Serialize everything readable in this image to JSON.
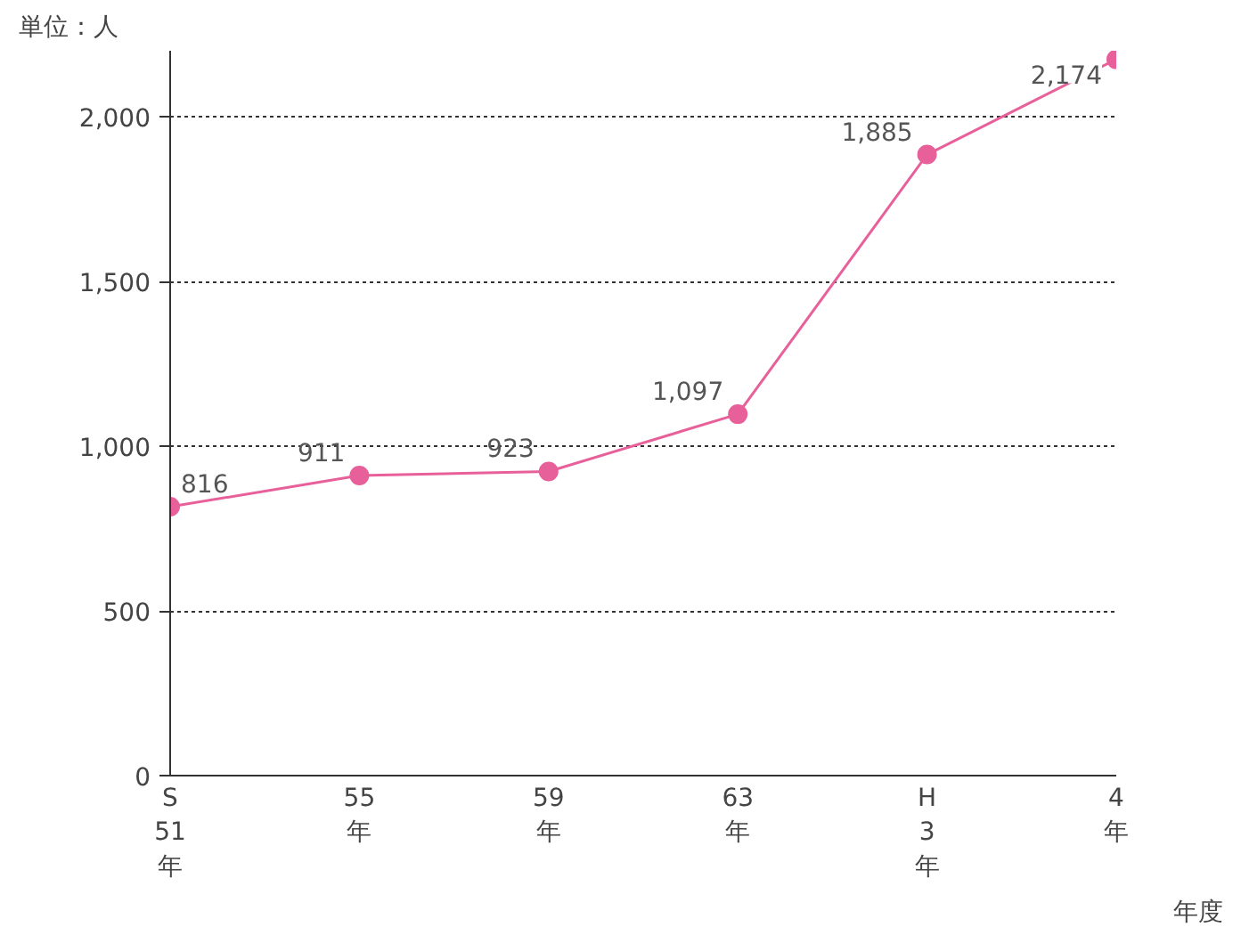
{
  "chart_data": {
    "type": "line",
    "ylabel": "単位：人",
    "xlabel": "年度",
    "categories": [
      "S\n51\n年",
      "55\n年",
      "59\n年",
      "63\n年",
      "H\n3\n年",
      "4\n年"
    ],
    "series": [
      {
        "color": "#e8609a",
        "values": [
          816,
          911,
          923,
          1097,
          1885,
          2174
        ],
        "value_labels": [
          "816",
          "911",
          "923",
          "1,097",
          "1,885",
          "2,174"
        ]
      }
    ],
    "ylim": [
      0,
      2200
    ],
    "yticks": [
      {
        "value": 0,
        "label": "0"
      },
      {
        "value": 500,
        "label": "500"
      },
      {
        "value": 1000,
        "label": "1,000"
      },
      {
        "value": 1500,
        "label": "1,500"
      },
      {
        "value": 2000,
        "label": "2,000"
      }
    ],
    "grid": "y",
    "marker": "circle",
    "line_style": "solid"
  }
}
